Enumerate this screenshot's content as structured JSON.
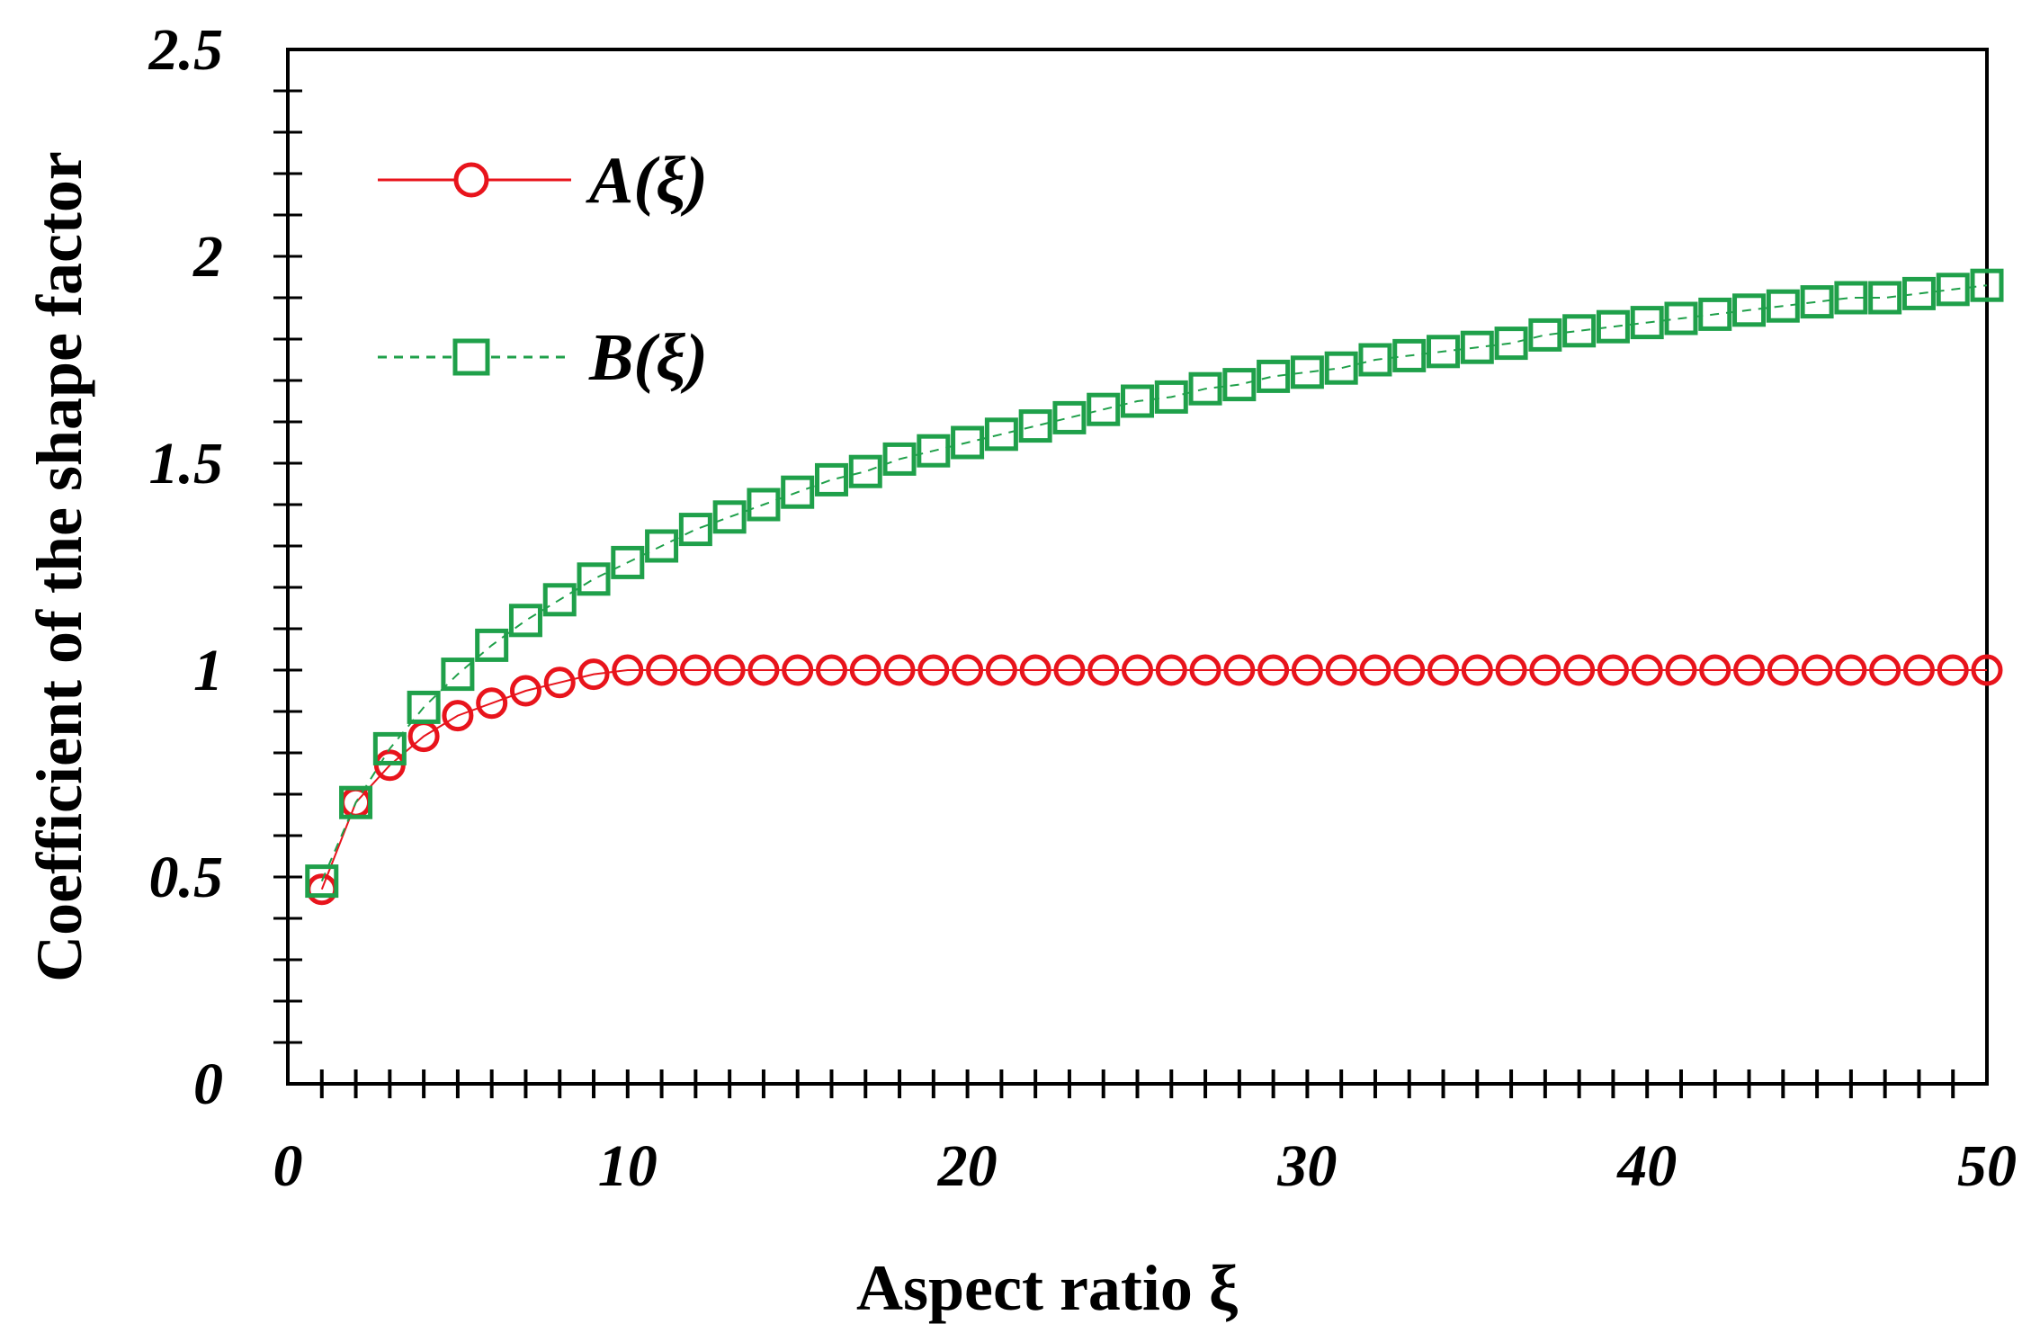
{
  "chart_data": {
    "type": "line",
    "title": "",
    "xlabel": "Aspect ratio ξ",
    "ylabel": "Coefficient of the shape factor",
    "xlim": [
      0,
      50
    ],
    "ylim": [
      0,
      2.5
    ],
    "xticks": [
      0,
      10,
      20,
      30,
      40,
      50
    ],
    "xtick_labels": [
      "0",
      "10",
      "20",
      "30",
      "40",
      "50"
    ],
    "yticks": [
      0,
      0.5,
      1,
      1.5,
      2,
      2.5
    ],
    "ytick_labels": [
      "0",
      "0.5",
      "1",
      "1.5",
      "2",
      "2.5"
    ],
    "x_minor_step": 1,
    "y_minor_step": 0.1,
    "grid": false,
    "legend_position": "top-left",
    "x": [
      1,
      2,
      3,
      4,
      5,
      6,
      7,
      8,
      9,
      10,
      11,
      12,
      13,
      14,
      15,
      16,
      17,
      18,
      19,
      20,
      21,
      22,
      23,
      24,
      25,
      26,
      27,
      28,
      29,
      30,
      31,
      32,
      33,
      34,
      35,
      36,
      37,
      38,
      39,
      40,
      41,
      42,
      43,
      44,
      45,
      46,
      47,
      48,
      49,
      50
    ],
    "series": [
      {
        "name": "A(ξ)",
        "color": "#e8141c",
        "marker": "circle",
        "line_style": "solid",
        "values": [
          0.47,
          0.68,
          0.77,
          0.84,
          0.89,
          0.92,
          0.95,
          0.97,
          0.99,
          1,
          1,
          1,
          1,
          1,
          1,
          1,
          1,
          1,
          1,
          1,
          1,
          1,
          1,
          1,
          1,
          1,
          1,
          1,
          1,
          1,
          1,
          1,
          1,
          1,
          1,
          1,
          1,
          1,
          1,
          1,
          1,
          1,
          1,
          1,
          1,
          1,
          1,
          1,
          1,
          1
        ]
      },
      {
        "name": "B(ξ)",
        "color": "#1fa04a",
        "marker": "square",
        "line_style": "dashed",
        "values": [
          0.49,
          0.68,
          0.81,
          0.91,
          0.99,
          1.06,
          1.12,
          1.17,
          1.22,
          1.26,
          1.3,
          1.34,
          1.37,
          1.4,
          1.43,
          1.46,
          1.48,
          1.51,
          1.53,
          1.55,
          1.57,
          1.59,
          1.61,
          1.63,
          1.65,
          1.66,
          1.68,
          1.69,
          1.71,
          1.72,
          1.73,
          1.75,
          1.76,
          1.77,
          1.78,
          1.79,
          1.81,
          1.82,
          1.83,
          1.84,
          1.85,
          1.86,
          1.87,
          1.88,
          1.89,
          1.9,
          1.9,
          1.91,
          1.92,
          1.93
        ]
      }
    ]
  }
}
